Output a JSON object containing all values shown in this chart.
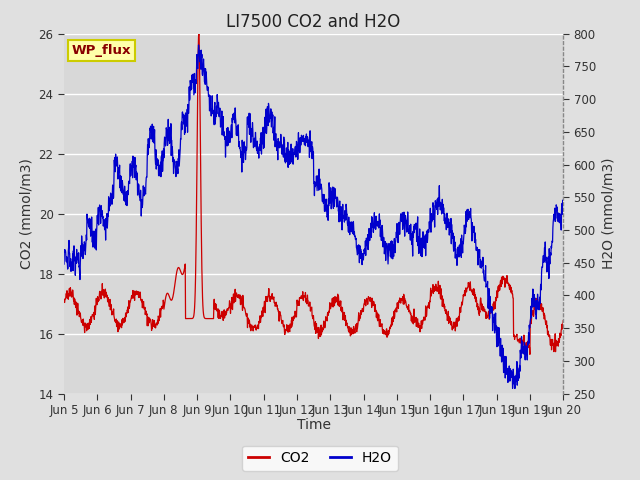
{
  "title": "LI7500 CO2 and H2O",
  "xlabel": "Time",
  "ylabel_left": "CO2 (mmol/m3)",
  "ylabel_right": "H2O (mmol/m3)",
  "co2_ylim": [
    14,
    26
  ],
  "h2o_ylim": [
    250,
    800
  ],
  "co2_yticks": [
    14,
    16,
    18,
    20,
    22,
    24,
    26
  ],
  "h2o_yticks": [
    250,
    300,
    350,
    400,
    450,
    500,
    550,
    600,
    650,
    700,
    750,
    800
  ],
  "xtick_labels": [
    "Jun 5",
    "Jun 6",
    "Jun 7",
    "Jun 8",
    "Jun 9",
    "Jun 10",
    "Jun 11",
    "Jun 12",
    "Jun 13",
    "Jun 14",
    "Jun 15",
    "Jun 16",
    "Jun 17",
    "Jun 18",
    "Jun 19",
    "Jun 20"
  ],
  "co2_color": "#cc0000",
  "h2o_color": "#0000cc",
  "figure_bg": "#e0e0e0",
  "plot_bg": "#d8d8d8",
  "grid_color": "#ffffff",
  "annotation_text": "WP_flux",
  "annotation_bg": "#ffffaa",
  "annotation_border": "#cccc00",
  "annotation_text_color": "#880000",
  "title_fontsize": 12,
  "axis_label_fontsize": 10,
  "tick_fontsize": 8.5,
  "legend_fontsize": 10
}
